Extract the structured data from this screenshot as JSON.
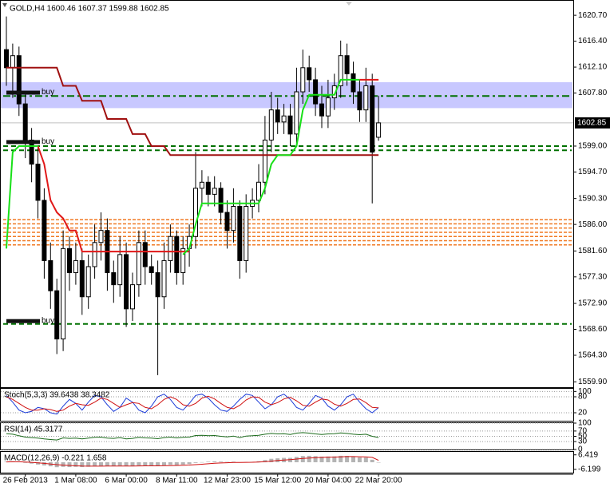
{
  "chart_data": [
    {
      "type": "candlestick",
      "title": "GOLD,H4 1600.46 1607.37 1599.88 1602.85",
      "categories": [
        null,
        null,
        null,
        "26 Feb 2013",
        null,
        null,
        null,
        null,
        null,
        null,
        null,
        "1 Mar 08:00",
        null,
        null,
        null,
        null,
        null,
        null,
        null,
        "6 Mar 00:00",
        null,
        null,
        null,
        null,
        null,
        null,
        null,
        "8 Mar 11:00",
        null,
        null,
        null,
        null,
        null,
        null,
        null,
        "12 Mar 23:00",
        null,
        null,
        null,
        null,
        null,
        null,
        null,
        "15 Mar 12:00",
        null,
        null,
        null,
        null,
        null,
        null,
        null,
        "20 Mar 04:00",
        null,
        null,
        null,
        null,
        null,
        null,
        null,
        "22 Mar 20:00"
      ],
      "open": [
        1615,
        1612,
        1614,
        1606,
        1600,
        1596,
        1590,
        1580,
        1575,
        1567,
        1582,
        1578,
        1580,
        1574,
        1579,
        1583,
        1585,
        1578,
        1576,
        1581,
        1572,
        1576,
        1583,
        1579,
        1578,
        1574,
        1580,
        1584,
        1578,
        1582,
        1584,
        1592,
        1593,
        1591,
        1592,
        1588,
        1585,
        1589,
        1580,
        1589,
        1590,
        1593,
        1600,
        1605,
        1603,
        1604,
        1601,
        1608,
        1612,
        1610,
        1606,
        1604,
        1607,
        1609,
        1614,
        1611,
        1608,
        1605,
        1609,
        1600.46
      ],
      "high": [
        1620.5,
        1616,
        1615.5,
        1608,
        1602,
        1599,
        1592,
        1583,
        1577,
        1585,
        1584,
        1583,
        1582,
        1581,
        1586,
        1588,
        1587,
        1580,
        1584,
        1583,
        1578,
        1585,
        1585,
        1581,
        1580,
        1583,
        1586,
        1585,
        1584,
        1586,
        1598,
        1595,
        1594,
        1594,
        1593,
        1590,
        1592,
        1590,
        1591,
        1592,
        1596,
        1604,
        1608,
        1607,
        1606,
        1606,
        1612,
        1615,
        1614,
        1612,
        1609,
        1610,
        1611,
        1616.5,
        1616,
        1613,
        1610,
        1612,
        1611,
        1607.37
      ],
      "low": [
        1609,
        1607,
        1604,
        1597,
        1593,
        1587,
        1577,
        1572,
        1564.5,
        1565,
        1575,
        1576,
        1571,
        1572,
        1577,
        1580,
        1575,
        1573,
        1574,
        1569,
        1570,
        1574,
        1576,
        1576,
        1561,
        1572,
        1578,
        1576,
        1576,
        1579,
        1582,
        1589,
        1589,
        1589,
        1586,
        1582,
        1583,
        1577,
        1578,
        1587,
        1588,
        1591,
        1598,
        1601,
        1601,
        1599,
        1599,
        1606,
        1608,
        1604,
        1602,
        1602,
        1605,
        1607,
        1609,
        1606,
        1603,
        1603,
        1589.5,
        1599.88
      ],
      "close": [
        1612,
        1614,
        1606,
        1600,
        1596,
        1590,
        1580,
        1575,
        1567,
        1582,
        1578,
        1580,
        1574,
        1579,
        1583,
        1585,
        1578,
        1576,
        1581,
        1572,
        1576,
        1583,
        1579,
        1578,
        1574,
        1580,
        1584,
        1578,
        1582,
        1584,
        1592,
        1593,
        1591,
        1592,
        1588,
        1585,
        1589,
        1580,
        1589,
        1590,
        1593,
        1600,
        1605,
        1603,
        1604,
        1601,
        1608,
        1612,
        1610,
        1606,
        1604,
        1607,
        1609,
        1614,
        1611,
        1608,
        1605,
        1609,
        1598,
        1602.85
      ],
      "ylim": [
        1559.0,
        1623.1
      ],
      "yticks": [
        {
          "value": 1620.7,
          "label": "1620.70"
        },
        {
          "value": 1616.4,
          "label": "1616.40"
        },
        {
          "value": 1612.1,
          "label": "1612.10"
        },
        {
          "value": 1607.8,
          "label": "1607.80"
        },
        {
          "value": 1599,
          "label": "1599.00"
        },
        {
          "value": 1594.7,
          "label": "1594.70"
        },
        {
          "value": 1590.3,
          "label": "1590.30"
        },
        {
          "value": 1586,
          "label": "1586.00"
        },
        {
          "value": 1581.6,
          "label": "1581.60"
        },
        {
          "value": 1577.3,
          "label": "1577.30"
        },
        {
          "value": 1572.9,
          "label": "1572.90"
        },
        {
          "value": 1568.6,
          "label": "1568.60"
        },
        {
          "value": 1564.3,
          "label": "1564.30"
        },
        {
          "value": 1559.9,
          "label": "1559.90"
        }
      ],
      "current_price": 1602.85,
      "series": [
        {
          "color": "#a01010",
          "values": [
            1612,
            1612,
            1612,
            1612,
            1612,
            1612,
            1612,
            1612,
            1612,
            1609,
            1609,
            1609,
            1606.5,
            1606.5,
            1606.5,
            1606.5,
            1603.5,
            1603.5,
            1603.5,
            1603.5,
            1601,
            1601,
            1601,
            1599,
            1599,
            1599,
            1597.5,
            1597.5,
            1597.5,
            1597.5,
            1597.5,
            1597.5,
            1597.5,
            1597.5,
            1597.5,
            1597.5,
            1597.5,
            1597.5,
            1597.5,
            1597.5,
            1597.5,
            1597.5,
            1597.5,
            1597.5,
            1597.5,
            1597.5,
            1597.5,
            1597.5,
            1597.5,
            1597.5,
            1597.5,
            1597.5,
            1597.5,
            1597.5,
            1597.5,
            1597.5,
            1597.5,
            1597.5,
            1597.5,
            1597.5
          ]
        },
        {
          "color": "#e01818",
          "values": [
            null,
            null,
            null,
            null,
            null,
            1599,
            1596,
            1590,
            1588,
            1587,
            1585,
            1585,
            1581.5,
            1581.5,
            1581.5,
            1581.5,
            1581.5,
            1581.5,
            1581.5,
            1581.5,
            1581.5,
            1581.5,
            1581.5,
            1581.5,
            1581.5,
            1581.5,
            1581.5,
            1581.5,
            1581.5,
            1581.5,
            null,
            null,
            null,
            null,
            null,
            null,
            null,
            null,
            null,
            null,
            null,
            null,
            null,
            null,
            null,
            null,
            null,
            null,
            null,
            null,
            null,
            null,
            null,
            null,
            null,
            null,
            1610,
            1610,
            1610,
            1610
          ]
        },
        {
          "color": "#18e018",
          "values": [
            1582,
            1598,
            1599,
            1599,
            1599,
            1599,
            null,
            null,
            null,
            null,
            null,
            null,
            null,
            null,
            null,
            null,
            null,
            null,
            null,
            null,
            null,
            null,
            null,
            null,
            null,
            null,
            null,
            null,
            1581,
            1582,
            1586,
            1589.5,
            1589.5,
            1589.5,
            1589.5,
            1589.5,
            1589.5,
            1589.5,
            1589.5,
            1589.5,
            1589.5,
            1592,
            1596,
            1597.5,
            1597.5,
            1597.5,
            1599,
            1605,
            1607.5,
            1607.5,
            1607.5,
            1607.5,
            1607.5,
            1610,
            1610,
            1610,
            1610,
            null,
            null,
            null
          ]
        }
      ],
      "band": [
        1605.3,
        1609.6
      ],
      "band_color": "#c8c8ff",
      "levels": [
        {
          "value": 1607.3,
          "style": "dash-dot",
          "color": "#007000"
        },
        {
          "value": 1599,
          "style": "dashed",
          "color": "#007000"
        },
        {
          "value": 1598.3,
          "style": "dashed",
          "color": "#007000"
        },
        {
          "value": 1569.5,
          "style": "dashed",
          "color": "#007000"
        }
      ],
      "orange_levels": [
        1582.6,
        1583.3,
        1584,
        1584.7,
        1585.4,
        1586.1,
        1586.8
      ],
      "orange_color": "#f07820",
      "annotations": [
        {
          "text": "buy",
          "value": 1607.8
        },
        {
          "text": "buy",
          "value": 1599.6
        },
        {
          "text": "buy",
          "value": 1569.9
        }
      ]
    },
    {
      "type": "line",
      "title": "Stoch(5,3,3) 39.6438 38.3482",
      "ylim": [
        -10,
        110
      ],
      "yticks": [
        100,
        80,
        20
      ],
      "grid": true,
      "series": [
        {
          "color": "#1c3cd8",
          "values": [
            85,
            60,
            30,
            20,
            25,
            40,
            35,
            20,
            15,
            45,
            70,
            55,
            30,
            60,
            85,
            80,
            50,
            25,
            40,
            75,
            60,
            30,
            20,
            45,
            80,
            90,
            70,
            40,
            30,
            55,
            85,
            90,
            75,
            50,
            30,
            25,
            45,
            70,
            90,
            85,
            60,
            35,
            50,
            80,
            90,
            70,
            40,
            30,
            55,
            85,
            75,
            45,
            30,
            50,
            80,
            90,
            60,
            35,
            20,
            39.6438
          ]
        },
        {
          "color": "#d01010",
          "values": [
            80,
            70,
            55,
            40,
            30,
            30,
            35,
            32,
            25,
            30,
            45,
            55,
            50,
            48,
            60,
            75,
            70,
            55,
            40,
            50,
            58,
            55,
            40,
            35,
            50,
            70,
            80,
            70,
            50,
            45,
            55,
            75,
            82,
            72,
            55,
            40,
            35,
            48,
            68,
            80,
            78,
            60,
            50,
            58,
            72,
            78,
            65,
            48,
            45,
            60,
            72,
            68,
            52,
            45,
            55,
            70,
            72,
            58,
            40,
            38.3482
          ]
        }
      ]
    },
    {
      "type": "line",
      "title": "RSI(14) 45.3177",
      "ylim": [
        0,
        100
      ],
      "yticks": [
        100,
        70,
        50,
        30,
        0
      ],
      "grid": true,
      "series": [
        {
          "color": "#1a6a1a",
          "values": [
            60,
            58,
            52,
            47,
            45,
            43,
            40,
            38,
            36,
            44,
            42,
            43,
            40,
            43,
            46,
            47,
            43,
            42,
            45,
            40,
            42,
            46,
            44,
            43,
            41,
            45,
            47,
            44,
            46,
            47,
            53,
            54,
            52,
            53,
            50,
            48,
            51,
            45,
            51,
            52,
            54,
            58,
            61,
            59,
            60,
            57,
            62,
            64,
            62,
            59,
            57,
            59,
            60,
            63,
            61,
            58,
            56,
            58,
            50,
            45.3177
          ]
        }
      ]
    },
    {
      "type": "bar",
      "title": "MACD(12,26,9) -0.221 1.658",
      "ylim": [
        -9,
        9
      ],
      "yticks": [
        6.419,
        -6.199
      ],
      "grid": false,
      "color": "#b4b4b4",
      "values": [
        0.5,
        0.8,
        0.4,
        -0.5,
        -1.2,
        -2,
        -2.8,
        -3.5,
        -4.3,
        -4,
        -4.2,
        -4,
        -4.2,
        -3.9,
        -3.5,
        -3.1,
        -3.2,
        -3.3,
        -3,
        -3.4,
        -3.3,
        -2.8,
        -2.8,
        -2.9,
        -3.1,
        -2.7,
        -2.2,
        -2.4,
        -2,
        -1.6,
        -0.6,
        0.1,
        0.5,
        0.8,
        0.6,
        0.3,
        0.5,
        -0.2,
        0.1,
        0.4,
        0.9,
        1.9,
        3,
        3.4,
        3.8,
        3.8,
        4.6,
        5.4,
        5.6,
        5.3,
        4.9,
        5,
        5.1,
        5.6,
        5.5,
        4.9,
        4.2,
        4.1,
        2.2,
        -0.221
      ],
      "series": [
        {
          "color": "#d01010",
          "values": [
            0.3,
            0.4,
            0.4,
            0.2,
            -0.1,
            -0.5,
            -1,
            -1.5,
            -2.1,
            -2.5,
            -2.8,
            -3.1,
            -3.3,
            -3.4,
            -3.4,
            -3.4,
            -3.3,
            -3.3,
            -3.3,
            -3.3,
            -3.3,
            -3.2,
            -3.1,
            -3.1,
            -3.1,
            -3,
            -2.9,
            -2.8,
            -2.6,
            -2.4,
            -2.1,
            -1.7,
            -1.3,
            -0.9,
            -0.6,
            -0.4,
            -0.2,
            -0.2,
            -0.1,
            0,
            0.2,
            0.5,
            1,
            1.5,
            1.9,
            2.3,
            2.8,
            3.3,
            3.7,
            4,
            4.2,
            4.4,
            4.5,
            4.7,
            4.9,
            4.9,
            4.8,
            4.7,
            4.2,
            1.658
          ]
        }
      ]
    }
  ]
}
